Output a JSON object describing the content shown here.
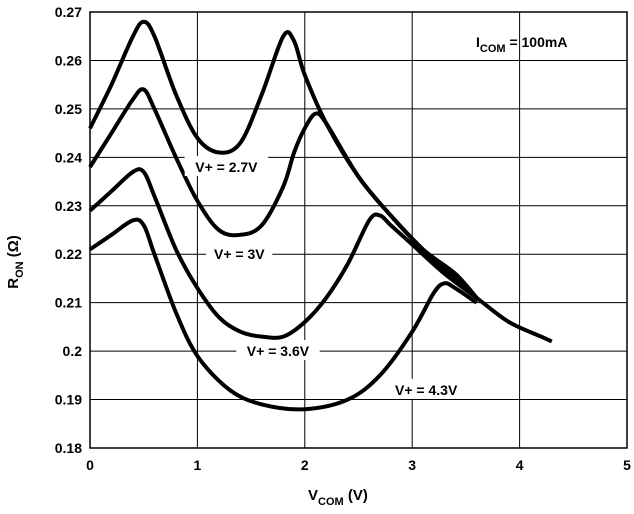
{
  "chart_data": {
    "type": "line",
    "xlabel": {
      "main": "V",
      "sub": "COM",
      "rest": " (V)"
    },
    "ylabel": {
      "main": "R",
      "sub": "ON",
      "rest": " (Ω)"
    },
    "annotation": {
      "main": "I",
      "sub": "COM",
      "rest": " = 100mA"
    },
    "xlim": [
      0,
      5
    ],
    "ylim": [
      0.18,
      0.27
    ],
    "xticks": [
      "0",
      "1",
      "2",
      "3",
      "4",
      "5"
    ],
    "yticks": [
      "0.18",
      "0.19",
      "0.2",
      "0.21",
      "0.22",
      "0.23",
      "0.24",
      "0.25",
      "0.26",
      "0.27"
    ],
    "grid": true,
    "series": [
      {
        "name": "V+ = 2.7V",
        "x": [
          0,
          0.2,
          0.4,
          0.5,
          0.6,
          0.8,
          1.0,
          1.2,
          1.4,
          1.6,
          1.8,
          1.9,
          2.0,
          2.2,
          2.5,
          2.8,
          3.1,
          3.4,
          3.6
        ],
        "y": [
          0.246,
          0.255,
          0.265,
          0.268,
          0.265,
          0.253,
          0.244,
          0.241,
          0.243,
          0.253,
          0.265,
          0.264,
          0.257,
          0.247,
          0.236,
          0.228,
          0.221,
          0.216,
          0.211
        ]
      },
      {
        "name": "V+ = 3V",
        "x": [
          0,
          0.2,
          0.4,
          0.5,
          0.6,
          0.8,
          1.0,
          1.2,
          1.4,
          1.6,
          1.8,
          1.9,
          2.0,
          2.1,
          2.2,
          2.5,
          2.8,
          3.1,
          3.4,
          3.6
        ],
        "y": [
          0.238,
          0.245,
          0.252,
          0.254,
          0.25,
          0.24,
          0.231,
          0.225,
          0.224,
          0.226,
          0.234,
          0.241,
          0.246,
          0.249,
          0.247,
          0.236,
          0.228,
          0.221,
          0.215,
          0.211
        ]
      },
      {
        "name": "V+ = 3.6V",
        "x": [
          0,
          0.2,
          0.4,
          0.5,
          0.6,
          0.8,
          1.0,
          1.2,
          1.4,
          1.6,
          1.8,
          2.0,
          2.2,
          2.4,
          2.6,
          2.7,
          2.8,
          3.0,
          3.3,
          3.6,
          3.9,
          4.2,
          4.3
        ],
        "y": [
          0.229,
          0.233,
          0.237,
          0.237,
          0.232,
          0.221,
          0.213,
          0.207,
          0.204,
          0.203,
          0.203,
          0.206,
          0.211,
          0.218,
          0.227,
          0.228,
          0.226,
          0.222,
          0.216,
          0.211,
          0.206,
          0.203,
          0.202
        ]
      },
      {
        "name": "V+ = 4.3V",
        "x": [
          0,
          0.2,
          0.4,
          0.5,
          0.6,
          0.8,
          1.0,
          1.3,
          1.6,
          2.0,
          2.4,
          2.7,
          3.0,
          3.2,
          3.3,
          3.4,
          3.6
        ],
        "y": [
          0.221,
          0.224,
          0.227,
          0.226,
          0.22,
          0.208,
          0.199,
          0.192,
          0.189,
          0.188,
          0.19,
          0.195,
          0.204,
          0.212,
          0.214,
          0.213,
          0.21
        ]
      }
    ],
    "labels": [
      {
        "text": "V+ = 2.7V",
        "x": 1.27,
        "y": 0.238
      },
      {
        "text": "V+ = 3V",
        "x": 1.39,
        "y": 0.22
      },
      {
        "text": "V+ = 3.6V",
        "x": 1.75,
        "y": 0.2
      },
      {
        "text": "V+ = 4.3V",
        "x": 3.13,
        "y": 0.192
      }
    ],
    "colors": {
      "line": "#000000",
      "grid": "#000000",
      "background": "#ffffff"
    }
  }
}
